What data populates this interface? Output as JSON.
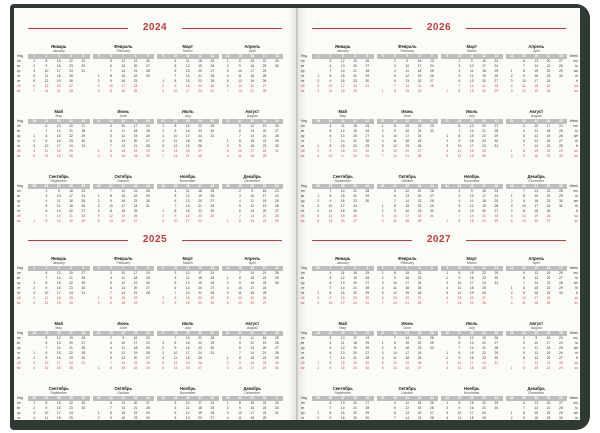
{
  "pages": [
    {
      "side": "left",
      "years": [
        {
          "year": "2024",
          "rows": [
            {
              "months": [
                {
                  "ru": "Январь",
                  "en": "January",
                  "weeks": [
                    "1",
                    "2",
                    "3",
                    "4",
                    "5"
                  ]
                },
                {
                  "ru": "Февраль",
                  "en": "February",
                  "weeks": [
                    "5",
                    "6",
                    "7",
                    "8",
                    "9"
                  ]
                },
                {
                  "ru": "Март",
                  "en": "March",
                  "weeks": [
                    "9",
                    "10",
                    "11",
                    "12",
                    "13"
                  ]
                },
                {
                  "ru": "Апрель",
                  "en": "April",
                  "weeks": [
                    "14",
                    "15",
                    "16",
                    "17",
                    "18"
                  ]
                }
              ]
            },
            {
              "months": [
                {
                  "ru": "Май",
                  "en": "May",
                  "weeks": [
                    "18",
                    "19",
                    "20",
                    "21",
                    "22"
                  ]
                },
                {
                  "ru": "Июнь",
                  "en": "June",
                  "weeks": [
                    "22",
                    "23",
                    "24",
                    "25",
                    "26"
                  ]
                },
                {
                  "ru": "Июль",
                  "en": "July",
                  "weeks": [
                    "27",
                    "28",
                    "29",
                    "30",
                    "31"
                  ]
                },
                {
                  "ru": "Август",
                  "en": "August",
                  "weeks": [
                    "31",
                    "32",
                    "33",
                    "34",
                    "35"
                  ]
                }
              ]
            },
            {
              "months": [
                {
                  "ru": "Сентябрь",
                  "en": "September",
                  "weeks": [
                    "35",
                    "36",
                    "37",
                    "38",
                    "39"
                  ]
                },
                {
                  "ru": "Октябрь",
                  "en": "October",
                  "weeks": [
                    "40",
                    "41",
                    "42",
                    "43",
                    "44"
                  ]
                },
                {
                  "ru": "Ноябрь",
                  "en": "November",
                  "weeks": [
                    "44",
                    "45",
                    "46",
                    "47",
                    "48"
                  ]
                },
                {
                  "ru": "Декабрь",
                  "en": "December",
                  "weeks": [
                    "48",
                    "49",
                    "50",
                    "51",
                    "52"
                  ]
                }
              ]
            }
          ]
        },
        {
          "year": "2025",
          "rows": [
            {
              "months": [
                {
                  "ru": "Январь",
                  "en": "January",
                  "weeks": [
                    "1",
                    "2",
                    "3",
                    "4",
                    "5"
                  ]
                },
                {
                  "ru": "Февраль",
                  "en": "February",
                  "weeks": [
                    "5",
                    "6",
                    "7",
                    "8",
                    "9"
                  ]
                },
                {
                  "ru": "Март",
                  "en": "March",
                  "weeks": [
                    "9",
                    "10",
                    "11",
                    "12",
                    "13"
                  ]
                },
                {
                  "ru": "Апрель",
                  "en": "April",
                  "weeks": [
                    "14",
                    "15",
                    "16",
                    "17",
                    "18"
                  ]
                }
              ]
            },
            {
              "months": [
                {
                  "ru": "Май",
                  "en": "May",
                  "weeks": [
                    "18",
                    "19",
                    "20",
                    "21",
                    "22"
                  ]
                },
                {
                  "ru": "Июнь",
                  "en": "June",
                  "weeks": [
                    "22",
                    "23",
                    "24",
                    "25",
                    "26"
                  ]
                },
                {
                  "ru": "Июль",
                  "en": "July",
                  "weeks": [
                    "27",
                    "28",
                    "29",
                    "30",
                    "31"
                  ]
                },
                {
                  "ru": "Август",
                  "en": "August",
                  "weeks": [
                    "31",
                    "32",
                    "33",
                    "34",
                    "35"
                  ]
                }
              ]
            },
            {
              "months": [
                {
                  "ru": "Сентябрь",
                  "en": "September",
                  "weeks": [
                    "36",
                    "37",
                    "38",
                    "39",
                    "40"
                  ]
                },
                {
                  "ru": "Октябрь",
                  "en": "October",
                  "weeks": [
                    "40",
                    "41",
                    "42",
                    "43",
                    "44"
                  ]
                },
                {
                  "ru": "Ноябрь",
                  "en": "November",
                  "weeks": [
                    "44",
                    "45",
                    "46",
                    "47",
                    "48"
                  ]
                },
                {
                  "ru": "Декабрь",
                  "en": "December",
                  "weeks": [
                    "49",
                    "50",
                    "51",
                    "52",
                    "1"
                  ]
                }
              ]
            }
          ]
        }
      ]
    },
    {
      "side": "right",
      "years": [
        {
          "year": "2026",
          "rows": [
            {
              "months": [
                {
                  "ru": "Январь",
                  "en": "January",
                  "weeks": [
                    "1",
                    "2",
                    "3",
                    "4",
                    "5"
                  ]
                },
                {
                  "ru": "Февраль",
                  "en": "February",
                  "weeks": [
                    "5",
                    "6",
                    "7",
                    "8",
                    "9"
                  ]
                },
                {
                  "ru": "Март",
                  "en": "March",
                  "weeks": [
                    "9",
                    "10",
                    "11",
                    "12",
                    "13"
                  ]
                },
                {
                  "ru": "Апрель",
                  "en": "April",
                  "weeks": [
                    "14",
                    "15",
                    "16",
                    "17",
                    "18"
                  ]
                }
              ]
            },
            {
              "months": [
                {
                  "ru": "Май",
                  "en": "May",
                  "weeks": [
                    "18",
                    "19",
                    "20",
                    "21",
                    "22"
                  ]
                },
                {
                  "ru": "Июнь",
                  "en": "June",
                  "weeks": [
                    "23",
                    "24",
                    "25",
                    "26",
                    "27"
                  ]
                },
                {
                  "ru": "Июль",
                  "en": "July",
                  "weeks": [
                    "27",
                    "28",
                    "29",
                    "30",
                    "31"
                  ]
                },
                {
                  "ru": "Август",
                  "en": "August",
                  "weeks": [
                    "31",
                    "32",
                    "33",
                    "34",
                    "35"
                  ]
                }
              ]
            },
            {
              "months": [
                {
                  "ru": "Сентябрь",
                  "en": "September",
                  "weeks": [
                    "36",
                    "37",
                    "38",
                    "39",
                    "40"
                  ]
                },
                {
                  "ru": "Октябрь",
                  "en": "October",
                  "weeks": [
                    "40",
                    "41",
                    "42",
                    "43",
                    "44"
                  ]
                },
                {
                  "ru": "Ноябрь",
                  "en": "November",
                  "weeks": [
                    "44",
                    "45",
                    "46",
                    "47",
                    "48"
                  ]
                },
                {
                  "ru": "Декабрь",
                  "en": "December",
                  "weeks": [
                    "49",
                    "50",
                    "51",
                    "52",
                    "53"
                  ]
                }
              ]
            }
          ]
        },
        {
          "year": "2027",
          "rows": [
            {
              "months": [
                {
                  "ru": "Январь",
                  "en": "January",
                  "weeks": [
                    "53",
                    "1",
                    "2",
                    "3",
                    "4"
                  ]
                },
                {
                  "ru": "Февраль",
                  "en": "February",
                  "weeks": [
                    "5",
                    "6",
                    "7",
                    "8",
                    "9"
                  ]
                },
                {
                  "ru": "Март",
                  "en": "March",
                  "weeks": [
                    "9",
                    "10",
                    "11",
                    "12",
                    "13"
                  ]
                },
                {
                  "ru": "Апрель",
                  "en": "April",
                  "weeks": [
                    "13",
                    "14",
                    "15",
                    "16",
                    "17"
                  ]
                }
              ]
            },
            {
              "months": [
                {
                  "ru": "Май",
                  "en": "May",
                  "weeks": [
                    "18",
                    "19",
                    "20",
                    "21",
                    "22"
                  ]
                },
                {
                  "ru": "Июнь",
                  "en": "June",
                  "weeks": [
                    "22",
                    "23",
                    "24",
                    "25",
                    "26"
                  ]
                },
                {
                  "ru": "Июль",
                  "en": "July",
                  "weeks": [
                    "26",
                    "27",
                    "28",
                    "29",
                    "30"
                  ]
                },
                {
                  "ru": "Август",
                  "en": "August",
                  "weeks": [
                    "31",
                    "32",
                    "33",
                    "34",
                    "35"
                  ]
                }
              ]
            },
            {
              "months": [
                {
                  "ru": "Сентябрь",
                  "en": "September",
                  "weeks": [
                    "35",
                    "36",
                    "37",
                    "38",
                    "39"
                  ]
                },
                {
                  "ru": "Октябрь",
                  "en": "October",
                  "weeks": [
                    "39",
                    "40",
                    "41",
                    "42",
                    "43"
                  ]
                },
                {
                  "ru": "Ноябрь",
                  "en": "November",
                  "weeks": [
                    "44",
                    "45",
                    "46",
                    "47",
                    "48"
                  ]
                },
                {
                  "ru": "Декабрь",
                  "en": "December",
                  "weeks": [
                    "48",
                    "49",
                    "50",
                    "51",
                    "52"
                  ]
                }
              ]
            }
          ]
        }
      ]
    }
  ],
  "labels": {
    "week_ru": "Нед",
    "week_en": "Week",
    "days_ru": [
      "пн",
      "вт",
      "ср",
      "чт",
      "пт",
      "сб",
      "вс"
    ],
    "days_en": [
      "mo",
      "tu",
      "we",
      "th",
      "fr",
      "sa",
      "su"
    ]
  },
  "accent_color": "#c0393b",
  "weekend_color": "#d0454a"
}
